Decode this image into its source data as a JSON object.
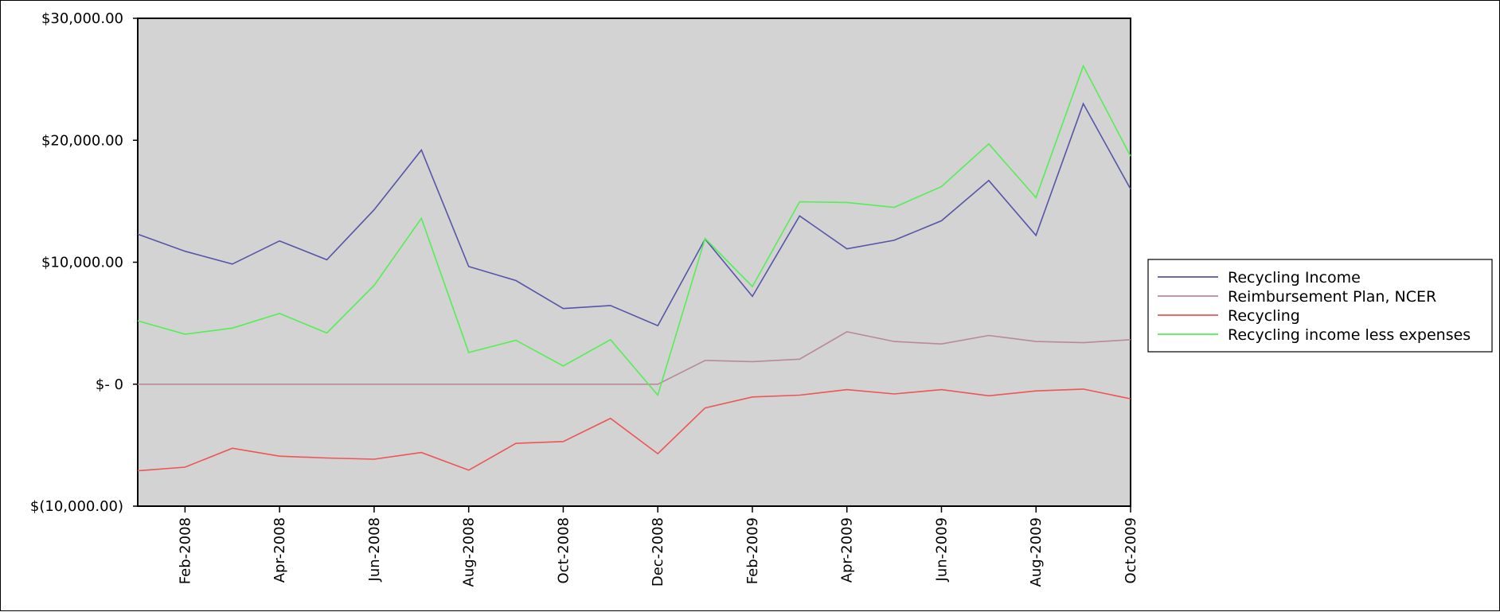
{
  "chart_data": {
    "type": "line",
    "title": "",
    "xlabel": "",
    "ylabel": "",
    "ylim": [
      -10000,
      30000
    ],
    "y_ticks": [
      -10000,
      0,
      10000,
      20000,
      30000
    ],
    "y_tick_labels": [
      "$(10,000.00)",
      "$- 0",
      "$10,000.00",
      "$20,000.00",
      "$30,000.00"
    ],
    "x": [
      "Jan-2008",
      "Feb-2008",
      "Mar-2008",
      "Apr-2008",
      "May-2008",
      "Jun-2008",
      "Jul-2008",
      "Aug-2008",
      "Sep-2008",
      "Oct-2008",
      "Nov-2008",
      "Dec-2008",
      "Jan-2009",
      "Feb-2009",
      "Mar-2009",
      "Apr-2009",
      "May-2009",
      "Jun-2009",
      "Jul-2009",
      "Aug-2009",
      "Sep-2009",
      "Oct-2009"
    ],
    "x_tick_labels": [
      "Feb-2008",
      "Apr-2008",
      "Jun-2008",
      "Aug-2008",
      "Oct-2008",
      "Dec-2008",
      "Feb-2009",
      "Apr-2009",
      "Jun-2009",
      "Aug-2009",
      "Oct-2009"
    ],
    "grid": false,
    "legend_position": "right",
    "plot_background": "#d3d3d3",
    "series": [
      {
        "name": "Recycling Income",
        "color": "#5555aa",
        "values": [
          12300,
          10900,
          9850,
          11750,
          10200,
          14300,
          19200,
          9650,
          8500,
          6200,
          6450,
          4800,
          11900,
          7200,
          13800,
          11100,
          11800,
          13400,
          16700,
          12200,
          23000,
          16000
        ]
      },
      {
        "name": "Reimbursement Plan, NCER",
        "color": "#bb8899",
        "values": [
          0,
          0,
          0,
          0,
          0,
          0,
          0,
          0,
          0,
          0,
          0,
          0,
          1950,
          1850,
          2050,
          4300,
          3500,
          3300,
          4000,
          3500,
          3400,
          3650
        ]
      },
      {
        "name": "Recycling",
        "color": "#ee5555",
        "values": [
          -7100,
          -6800,
          -5250,
          -5900,
          -6050,
          -6150,
          -5600,
          -7050,
          -4850,
          -4700,
          -2800,
          -5700,
          -1950,
          -1050,
          -900,
          -450,
          -800,
          -450,
          -950,
          -550,
          -400,
          -1200
        ]
      },
      {
        "name": "Recycling income less expenses",
        "color": "#55ee55",
        "values": [
          5200,
          4100,
          4600,
          5800,
          4200,
          8100,
          13600,
          2600,
          3600,
          1500,
          3650,
          -900,
          11950,
          8000,
          14950,
          14900,
          14500,
          16200,
          19700,
          15300,
          26100,
          18700
        ]
      }
    ]
  }
}
